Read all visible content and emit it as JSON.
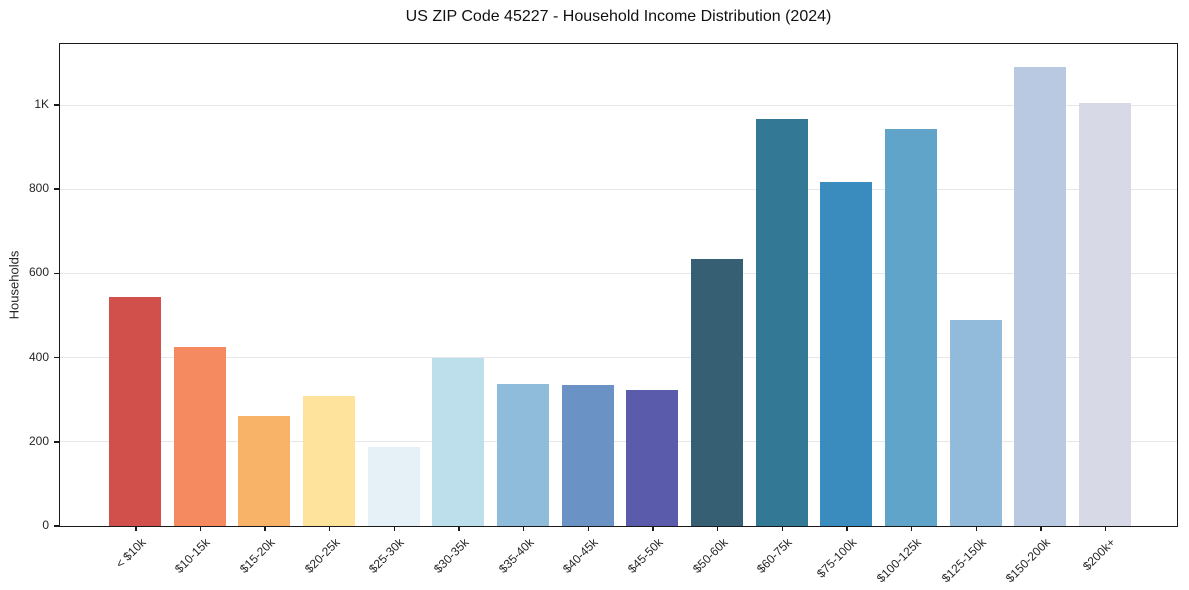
{
  "chart_data": {
    "type": "bar",
    "title": "US ZIP Code 45227 - Household Income Distribution (2024)",
    "xlabel": "",
    "ylabel": "Households",
    "categories": [
      "< $10k",
      "$10-15k",
      "$15-20k",
      "$20-25k",
      "$25-30k",
      "$30-35k",
      "$35-40k",
      "$40-45k",
      "$45-50k",
      "$50-60k",
      "$60-75k",
      "$75-100k",
      "$100-125k",
      "$125-150k",
      "$150-200k",
      "$200k+"
    ],
    "values": [
      545,
      425,
      262,
      310,
      187,
      400,
      337,
      334,
      322,
      635,
      968,
      818,
      944,
      490,
      1090,
      1005
    ],
    "bar_colors": [
      "#d2504b",
      "#f5895f",
      "#f9b369",
      "#fde39c",
      "#e5f1f7",
      "#bddfec",
      "#8fbcdb",
      "#6a92c4",
      "#5a5bab",
      "#365f74",
      "#337894",
      "#3a8cbe",
      "#60a5c9",
      "#91badb",
      "#b9c9e2",
      "#d8d9e7"
    ],
    "ylim": [
      0,
      1145
    ],
    "yticks": [
      {
        "value": 0,
        "label": "0"
      },
      {
        "value": 200,
        "label": "200"
      },
      {
        "value": 400,
        "label": "400"
      },
      {
        "value": 600,
        "label": "600"
      },
      {
        "value": 800,
        "label": "800"
      },
      {
        "value": 1000,
        "label": "1K"
      }
    ],
    "grid": "horizontal-only",
    "legend": "none"
  },
  "colors": {
    "spine": "#1a1a1a",
    "gridline": "#e7e7ea",
    "tick_text": "#262626",
    "title_text": "#111111",
    "background": "#ffffff"
  }
}
